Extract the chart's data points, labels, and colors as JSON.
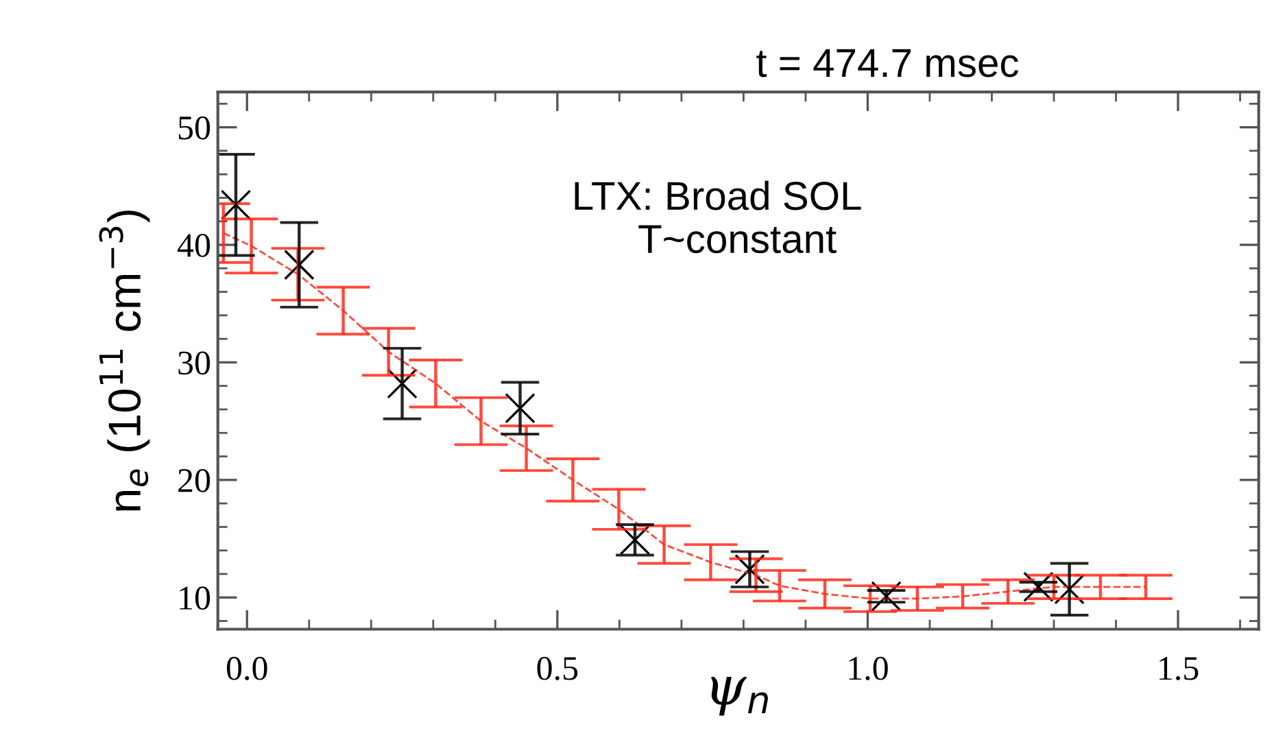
{
  "chart_data": {
    "type": "scatter",
    "title": "t = 474.7 msec",
    "xlabel": "ψ$_{n}$",
    "ylabel": "n$_{e}$ (10$^{11}$ cm$^{−3}$)",
    "annotations": [
      "LTX: Broad SOL\n      T~constant"
    ],
    "xlim": [
      -0.047,
      1.63
    ],
    "ylim": [
      7.3,
      53.0
    ],
    "xticks": [
      {
        "value": 0.0,
        "label": "0.0"
      },
      0.5,
      {
        "value": 1.0,
        "label": "1.0"
      },
      1.5
    ],
    "yticks": [
      10,
      20,
      30,
      40,
      50
    ],
    "grid": false,
    "legend": false,
    "series": [
      {
        "type": "line",
        "color": "#ff2a1a",
        "line_style": "dashed",
        "marker": "none",
        "x": [
          -0.038,
          0.007,
          0.082,
          0.155,
          0.228,
          0.304,
          0.377,
          0.45,
          0.525,
          0.599,
          0.672,
          0.747,
          0.82,
          0.858,
          0.931,
          1.004,
          1.08,
          1.153,
          1.226,
          1.3,
          1.375,
          1.448
        ],
        "values": [
          41.0,
          39.9,
          37.5,
          34.4,
          30.9,
          28.2,
          25.0,
          22.7,
          20.0,
          17.5,
          14.5,
          13.0,
          11.9,
          11.0,
          10.3,
          9.9,
          9.9,
          10.1,
          10.5,
          10.9,
          10.9,
          10.9
        ],
        "errors": [
          2.5,
          2.3,
          2.2,
          2.0,
          2.0,
          2.0,
          2.0,
          1.9,
          1.8,
          1.7,
          1.6,
          1.5,
          1.4,
          1.3,
          1.2,
          1.1,
          1.0,
          1.0,
          1.0,
          1.0,
          1.0,
          1.0
        ]
      },
      {
        "color": "#000000",
        "marker": "cross",
        "x": [
          -0.018,
          0.084,
          0.25,
          0.44,
          0.625,
          0.81,
          1.03,
          1.275,
          1.325
        ],
        "values": [
          43.4,
          38.3,
          28.2,
          26.1,
          14.9,
          12.4,
          10.1,
          10.9,
          10.7
        ],
        "errors": [
          4.3,
          3.6,
          3.0,
          2.2,
          1.3,
          1.5,
          0.5,
          0.4,
          2.2
        ]
      }
    ]
  }
}
